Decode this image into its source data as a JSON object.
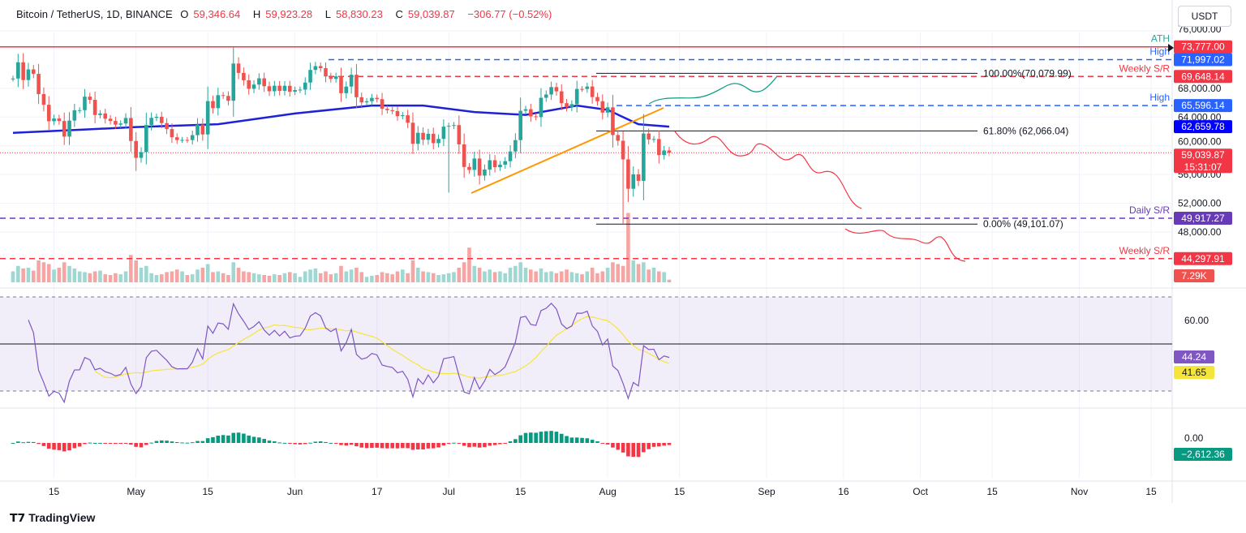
{
  "header": {
    "symbol": "Bitcoin / TetherUS, 1D, BINANCE",
    "open_label": "O",
    "open": "59,346.64",
    "high_label": "H",
    "high": "59,923.28",
    "low_label": "L",
    "low": "58,830.23",
    "close_label": "C",
    "close": "59,039.87",
    "change": "−306.77 (−0.52%)"
  },
  "currency_button": "USDT",
  "footer": {
    "brand": "TradingView"
  },
  "colors": {
    "up": "#26a69a",
    "down": "#ef5350",
    "ma": "#1e22d6",
    "rsi": "#7e57c2",
    "rsi_ma": "#f5e53b",
    "ath": "#f23645",
    "blue": "#2962ff",
    "purple": "#673ab7"
  },
  "chart_data": {
    "type": "candlestick",
    "start_date": "Apr 7",
    "closes": [
      69360,
      71620,
      69150,
      70630,
      70010,
      67200,
      65710,
      63420,
      63800,
      63450,
      61280,
      63510,
      64940,
      64960,
      66840,
      66400,
      64280,
      64500,
      63770,
      63460,
      62940,
      63100,
      63870,
      60670,
      58320,
      59120,
      62890,
      63890,
      64030,
      63160,
      62330,
      61190,
      60800,
      60820,
      60800,
      61480,
      62940,
      61580,
      66220,
      65240,
      67050,
      66940,
      66270,
      71450,
      70140,
      69120,
      67930,
      68520,
      69390,
      68290,
      67590,
      68360,
      67650,
      68350,
      67530,
      67760,
      67820,
      68800,
      70560,
      71090,
      70800,
      69650,
      69310,
      69660,
      67320,
      68240,
      69890,
      66760,
      66040,
      66200,
      66670,
      66490,
      65150,
      64960,
      64830,
      64130,
      64250,
      63210,
      60280,
      61810,
      60840,
      61670,
      60370,
      60960,
      62670,
      62770,
      62880,
      60200,
      57050,
      56650,
      58230,
      55850,
      56700,
      57990,
      57020,
      57370,
      57860,
      59210,
      60790,
      64870,
      65090,
      64100,
      63990,
      66680,
      67140,
      68170,
      67580,
      65930,
      65370,
      65790,
      67910,
      67900,
      68250,
      66780,
      66200,
      64620,
      65350,
      61500,
      60700,
      58110,
      54020,
      56030,
      55120,
      61710,
      60880,
      60940,
      58710,
      59350,
      59040
    ],
    "volumes_k": [
      30,
      45,
      38,
      40,
      32,
      60,
      55,
      50,
      35,
      40,
      55,
      45,
      38,
      30,
      28,
      25,
      30,
      32,
      22,
      20,
      25,
      22,
      30,
      75,
      60,
      40,
      45,
      25,
      20,
      22,
      28,
      30,
      35,
      30,
      20,
      22,
      35,
      40,
      50,
      28,
      30,
      25,
      20,
      55,
      40,
      30,
      28,
      25,
      22,
      20,
      18,
      22,
      20,
      25,
      28,
      25,
      15,
      30,
      35,
      38,
      25,
      30,
      22,
      25,
      45,
      30,
      35,
      40,
      28,
      15,
      18,
      20,
      28,
      25,
      22,
      30,
      35,
      25,
      60,
      40,
      30,
      28,
      25,
      20,
      22,
      25,
      28,
      40,
      55,
      95,
      45,
      40,
      30,
      35,
      28,
      30,
      25,
      40,
      45,
      55,
      40,
      35,
      30,
      38,
      28,
      30,
      25,
      30,
      35,
      28,
      25,
      22,
      30,
      40,
      25,
      30,
      40,
      55,
      50,
      45,
      190,
      60,
      50,
      55,
      35,
      40,
      30,
      28,
      7.29
    ],
    "ma_100": [
      [
        0,
        61800
      ],
      [
        15,
        62300
      ],
      [
        24,
        62600
      ],
      [
        40,
        63000
      ],
      [
        55,
        64500
      ],
      [
        70,
        65600
      ],
      [
        80,
        65600
      ],
      [
        90,
        64700
      ],
      [
        100,
        64300
      ],
      [
        110,
        65600
      ],
      [
        116,
        65000
      ],
      [
        122,
        63000
      ],
      [
        128,
        62659.78
      ]
    ],
    "price_axis": [
      "76,000.00",
      "68,000.00",
      "64,000.00",
      "60,000.00",
      "56,000.00",
      "52,000.00",
      "48,000.00"
    ],
    "price_axis_values": [
      76000,
      68000,
      64000,
      60000,
      56000,
      52000,
      48000
    ],
    "time_axis": [
      [
        "15",
        8
      ],
      [
        "May",
        24
      ],
      [
        "15",
        38
      ],
      [
        "Jun",
        55
      ],
      [
        "17",
        71
      ],
      [
        "Jul",
        85
      ],
      [
        "15",
        99
      ],
      [
        "Aug",
        116
      ],
      [
        "15",
        130
      ],
      [
        "Sep",
        147
      ],
      [
        "16",
        162
      ],
      [
        "Oct",
        177
      ],
      [
        "15",
        191
      ],
      [
        "Nov",
        208
      ],
      [
        "15",
        222
      ]
    ],
    "levels": [
      {
        "label": "ATH",
        "price": 73777.0,
        "text": "73,777.00",
        "color": "#f23645",
        "label_color": "#26a69a",
        "style": "solid"
      },
      {
        "label": "High",
        "price": 71997.02,
        "text": "71,997.02",
        "color": "#2962ff",
        "label_color": "#2962ff",
        "style": "dashed"
      },
      {
        "label": "Weekly S/R",
        "price": 69648.14,
        "text": "69,648.14",
        "color": "#f23645",
        "label_color": "#f23645",
        "style": "dashed"
      },
      {
        "label": "High",
        "price": 65596.14,
        "text": "65,596.14",
        "color": "#2962ff",
        "label_color": "#2962ff",
        "style": "dashed"
      },
      {
        "label": "Daily S/R",
        "price": 49917.27,
        "text": "49,917.27",
        "color": "#673ab7",
        "label_color": "#673ab7",
        "style": "dashed"
      },
      {
        "label": "Weekly S/R",
        "price": 44297.91,
        "text": "44,297.91",
        "color": "#f23645",
        "label_color": "#f23645",
        "style": "dashed"
      }
    ],
    "fib": [
      {
        "label": "100.00%(70,079.99)",
        "price": 70079.99
      },
      {
        "label": "61.80% (62,066.04)",
        "price": 62066.04
      },
      {
        "label": "0.00% (49,101.07)",
        "price": 49101.07
      }
    ],
    "ma_label": "62,659.78",
    "last_price": {
      "price": 59039.87,
      "text": "59,039.87",
      "countdown": "15:31:07"
    },
    "volume_label": "7.29K",
    "rsi": {
      "axis": "60.00",
      "value": "44.24",
      "ma_value": "41.65",
      "upper": 70,
      "lower": 30,
      "mid": 50
    },
    "macd": {
      "axis": "0.00",
      "value": "−2,612.36"
    }
  }
}
